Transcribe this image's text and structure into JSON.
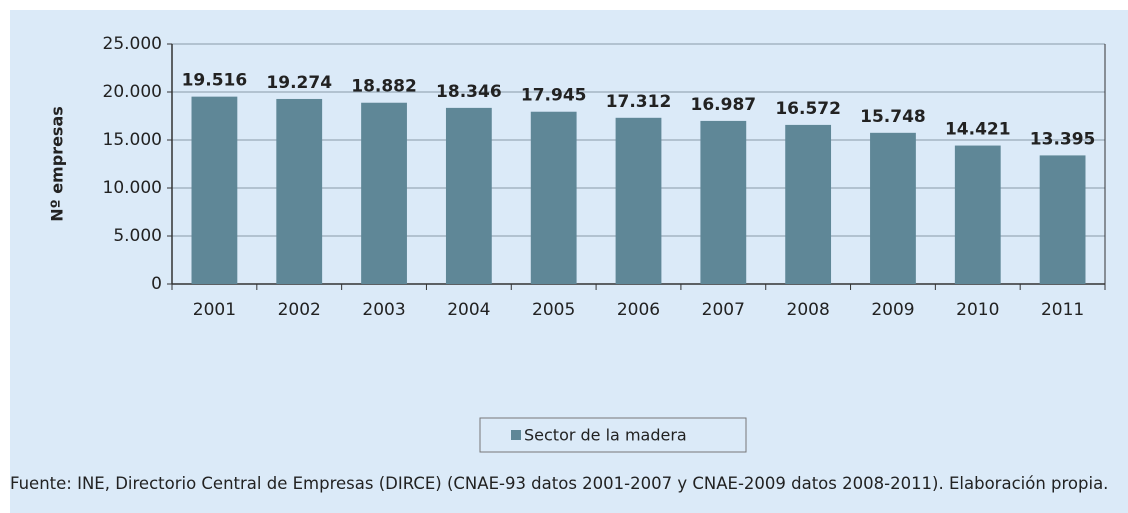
{
  "chart_data": {
    "type": "bar",
    "ylabel": "Nº empresas",
    "categories": [
      "2001",
      "2002",
      "2003",
      "2004",
      "2005",
      "2006",
      "2007",
      "2008",
      "2009",
      "2010",
      "2011"
    ],
    "series": [
      {
        "name": "Sector de la madera",
        "color": "#5f8797",
        "values": [
          19516,
          19274,
          18882,
          18346,
          17945,
          17312,
          16987,
          16572,
          15748,
          14421,
          13395
        ],
        "value_labels": [
          "19.516",
          "19.274",
          "18.882",
          "18.346",
          "17.945",
          "17.312",
          "16.987",
          "16.572",
          "15.748",
          "14.421",
          "13.395"
        ]
      }
    ],
    "ylim": [
      0,
      25000
    ],
    "yticks": [
      0,
      {
        "value": 5000,
        "label": "5.000"
      },
      {
        "value": 10000,
        "label": "10.000"
      },
      {
        "value": 15000,
        "label": "15.000"
      },
      {
        "value": 20000,
        "label": "20.000"
      },
      {
        "value": 25000,
        "label": "25.000"
      }
    ],
    "grid": true,
    "legend": "bottom",
    "source": "Fuente: INE, Directorio Central de Empresas (DIRCE) (CNAE-93 datos 2001-2007 y CNAE-2009 datos 2008-2011). Elaboración propia."
  }
}
